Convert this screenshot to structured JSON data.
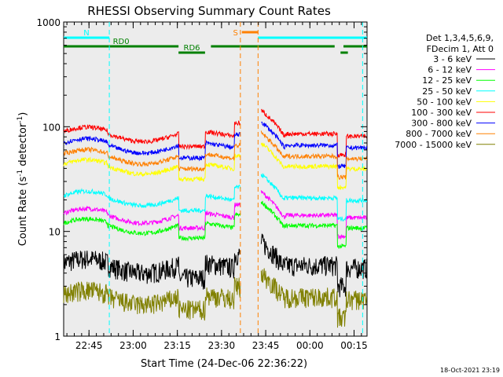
{
  "chart_data": {
    "type": "line",
    "title": "RHESSI Observing Summary Count Rates",
    "xlabel": "Start Time (24-Dec-06 22:36:22)",
    "ylabel_main": "Count Rate (s",
    "ylabel_sup1": "-1",
    "ylabel_mid": " detector",
    "ylabel_sup2": "-1",
    "ylabel_end": ")",
    "yscale": "log",
    "ylim": [
      1,
      1000
    ],
    "xlim_minutes": [
      0,
      103
    ],
    "y_ticks": [
      {
        "value": 1,
        "label": "1"
      },
      {
        "value": 10,
        "label": "10"
      },
      {
        "value": 100,
        "label": "100"
      },
      {
        "value": 1000,
        "label": "1000"
      }
    ],
    "x_ticks": [
      {
        "value": 8.6,
        "label": "22:45"
      },
      {
        "value": 23.6,
        "label": "23:00"
      },
      {
        "value": 38.6,
        "label": "23:15"
      },
      {
        "value": 53.6,
        "label": "23:30"
      },
      {
        "value": 68.6,
        "label": "23:45"
      },
      {
        "value": 83.6,
        "label": "00:00"
      },
      {
        "value": 98.6,
        "label": "00:15"
      }
    ],
    "legend": {
      "placement": "right",
      "header": [
        "Det 1,3,4,5,6,9,",
        "FDecim 1, Att 0"
      ]
    },
    "series": [
      {
        "name": "3 - 6 keV",
        "color": "#000000",
        "base": 5.0
      },
      {
        "name": "6 - 12 keV",
        "color": "#ff00ff",
        "base": 15.0
      },
      {
        "name": "12 - 25 keV",
        "color": "#00ff00",
        "base": 12.0
      },
      {
        "name": "25 - 50 keV",
        "color": "#00ffff",
        "base": 22.0
      },
      {
        "name": "50 - 100 keV",
        "color": "#ffff00",
        "base": 44.0
      },
      {
        "name": "100 - 300 keV",
        "color": "#ff0000",
        "base": 90.0
      },
      {
        "name": "300 - 800 keV",
        "color": "#0000ff",
        "base": 70.0
      },
      {
        "name": "800 - 7000 keV",
        "color": "#ff8000",
        "base": 55.0
      },
      {
        "name": "7000 - 15000 keV",
        "color": "#808000",
        "base": 2.5
      }
    ],
    "flags": [
      {
        "label": "N",
        "color": "#00ffff",
        "segments": [
          [
            0,
            15.5
          ],
          [
            66,
            103
          ]
        ]
      },
      {
        "label": "RD0",
        "color": "#008000",
        "segments": [
          [
            0,
            39
          ],
          [
            50,
            92
          ],
          [
            95,
            103
          ]
        ]
      },
      {
        "label": "RD6",
        "color": "#008000",
        "segments": [
          [
            39,
            48
          ],
          [
            94,
            96.5
          ]
        ]
      },
      {
        "label": "S",
        "color": "#ff8000",
        "segments": [
          [
            60.5,
            66
          ]
        ]
      }
    ],
    "vertical_markers": [
      {
        "x": 15.5,
        "color": "#00ffff"
      },
      {
        "x": 60.0,
        "color": "#ff8000"
      },
      {
        "x": 66.0,
        "color": "#ff8000"
      },
      {
        "x": 101.5,
        "color": "#00ffff"
      }
    ],
    "footer_date": "18-Oct-2021 23:19"
  }
}
